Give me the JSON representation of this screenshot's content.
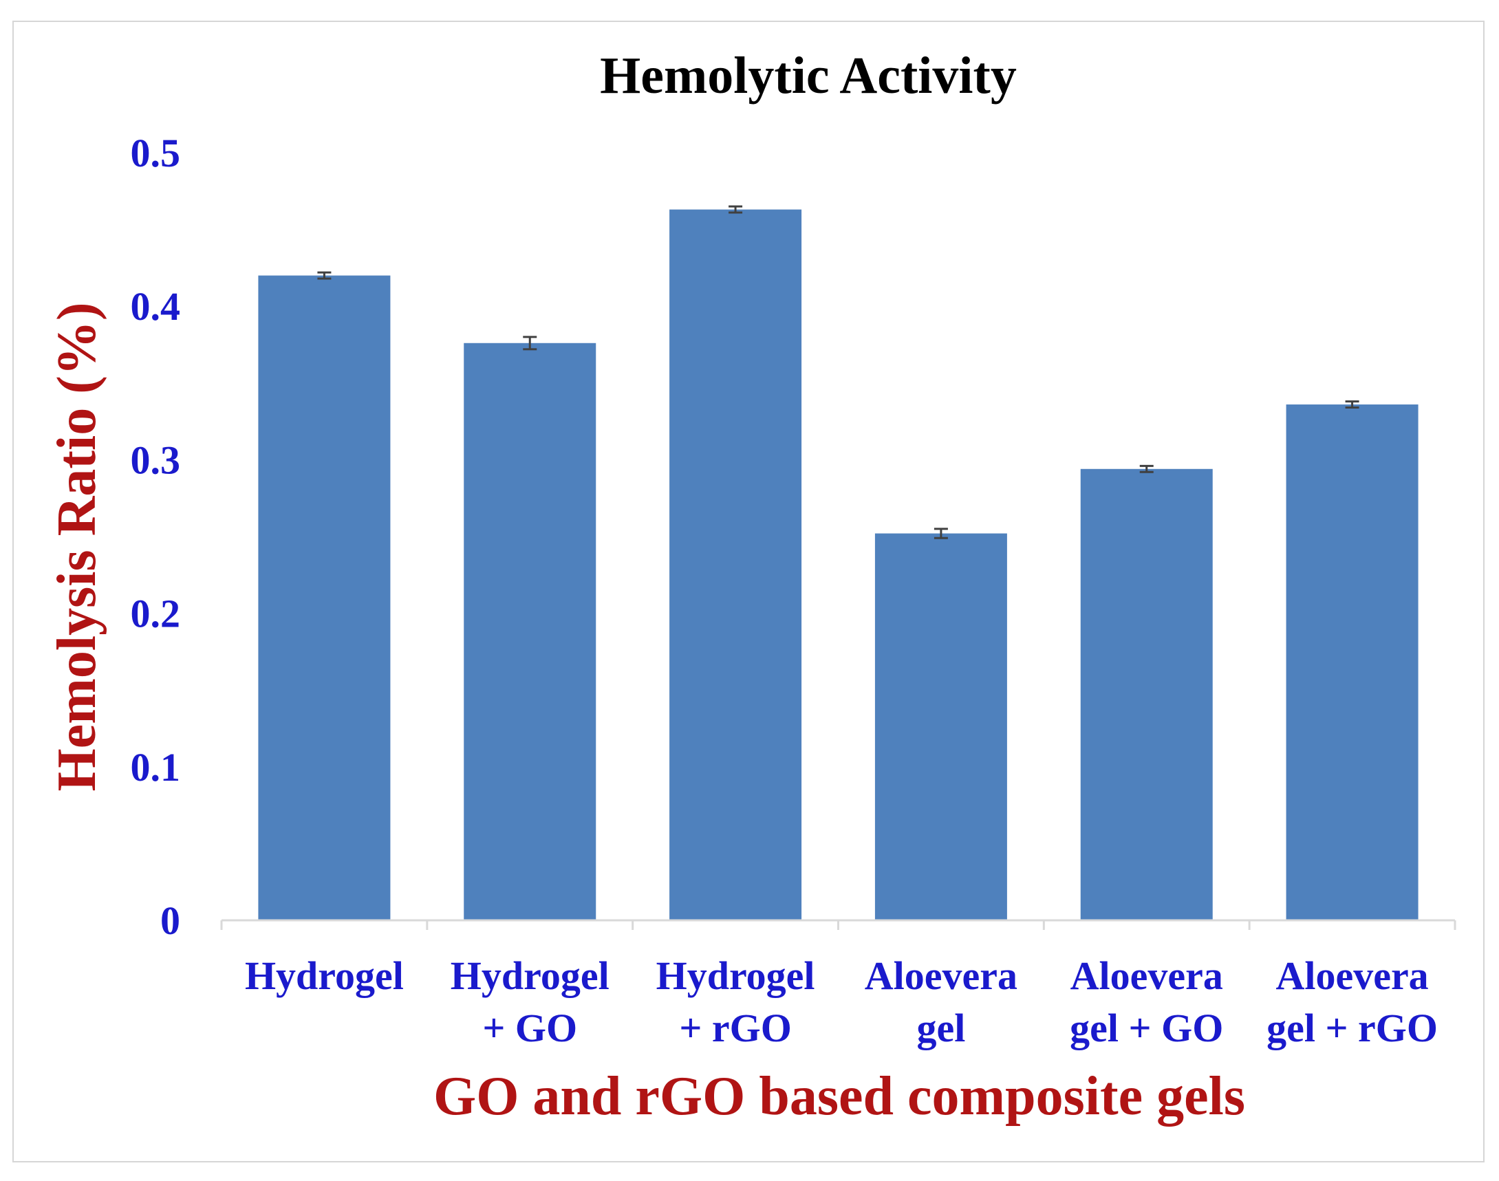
{
  "chart_data": {
    "type": "bar",
    "title": "Hemolytic Activity",
    "xlabel": "GO and rGO based composite gels",
    "ylabel": "Hemolysis Ratio (%)",
    "ylim": [
      0,
      0.5
    ],
    "yticks": [
      "0",
      "0.1",
      "0.2",
      "0.3",
      "0.4",
      "0.5"
    ],
    "ytick_values": [
      0,
      0.1,
      0.2,
      0.3,
      0.4,
      0.5
    ],
    "categories": [
      [
        "Hydrogel"
      ],
      [
        "Hydrogel",
        "+ GO"
      ],
      [
        "Hydrogel",
        "+ rGO"
      ],
      [
        "Aloevera",
        "gel"
      ],
      [
        "Aloevera",
        "gel + GO"
      ],
      [
        "Aloevera",
        "gel + rGO"
      ]
    ],
    "values": [
      0.42,
      0.376,
      0.463,
      0.252,
      0.294,
      0.336
    ],
    "errors": [
      0.002,
      0.004,
      0.002,
      0.003,
      0.002,
      0.002
    ],
    "grid": false,
    "colors": {
      "bar": "#4f81bd",
      "error": "#404040",
      "tick_text": "#1a1acc",
      "axis_label": "#b01414",
      "axis_line": "#d9d9d9"
    }
  }
}
